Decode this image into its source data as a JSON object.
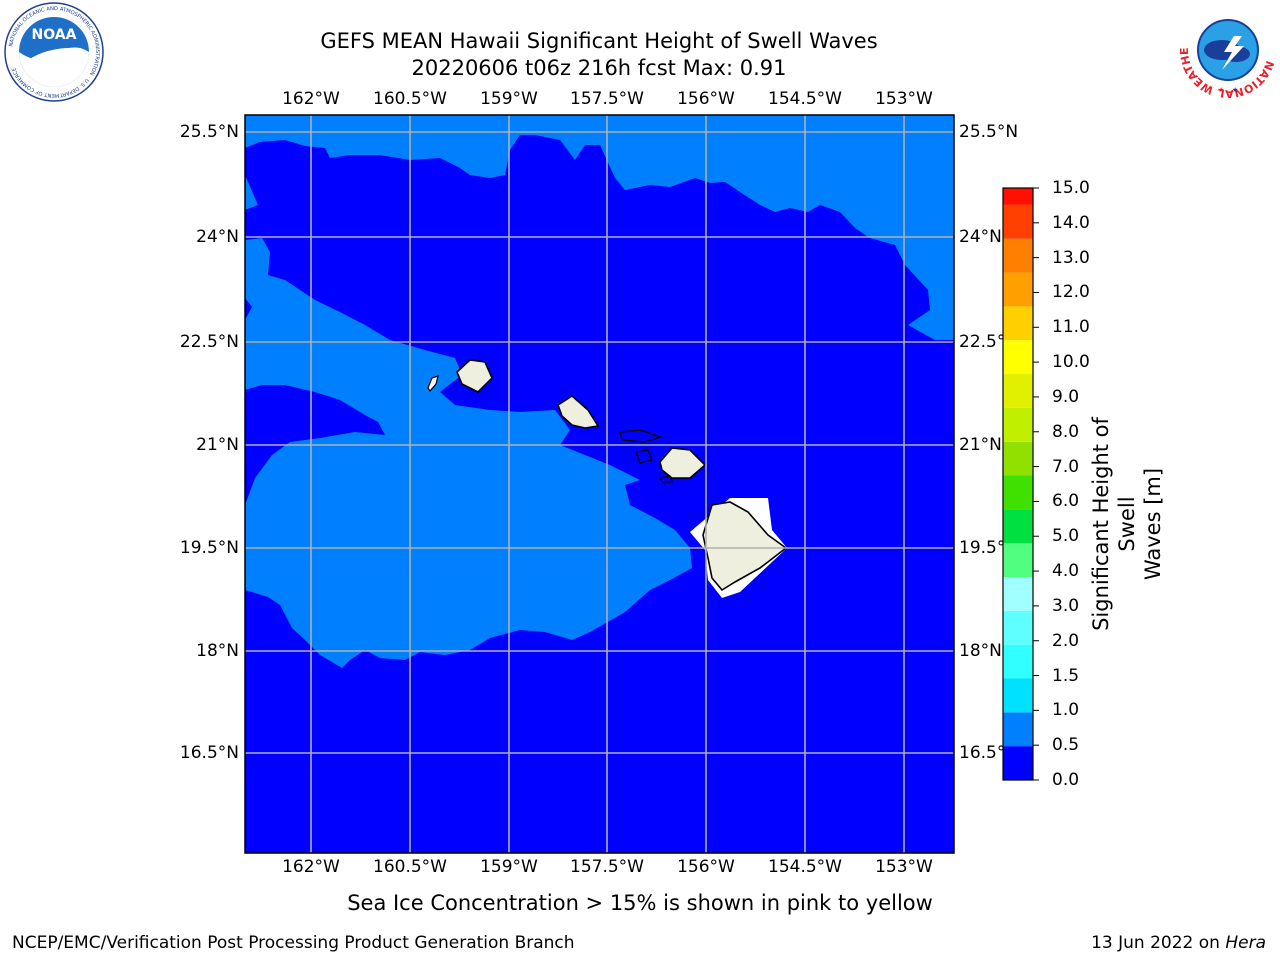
{
  "header": {
    "title_line1": "GEFS MEAN Hawaii Significant Height of Swell Waves",
    "title_line2": "20220606 t06z 216h fcst   Max: 0.91"
  },
  "map": {
    "lon_ticks": [
      "162°W",
      "160.5°W",
      "159°W",
      "157.5°W",
      "156°W",
      "154.5°W",
      "153°W"
    ],
    "lat_ticks": [
      "25.5°N",
      "24°N",
      "22.5°N",
      "21°N",
      "19.5°N",
      "18°N",
      "16.5°N"
    ],
    "colors": {
      "ocean_deep": "#0000ff",
      "ocean_shallow": "#0080ff",
      "land": "#efefdf",
      "grid": "#b0b0b0"
    }
  },
  "colorbar": {
    "label": "Significant Height of Swell Waves [m]",
    "label_line1": "Significant Height of Swell",
    "label_line2": "Waves [m]",
    "ticks": [
      "0.0",
      "0.5",
      "1.0",
      "1.5",
      "2.0",
      "3.0",
      "4.0",
      "5.0",
      "6.0",
      "7.0",
      "8.0",
      "9.0",
      "10.0",
      "11.0",
      "12.0",
      "13.0",
      "14.0",
      "15.0"
    ],
    "colors": [
      "#0000ff",
      "#0080ff",
      "#00e0ff",
      "#30ffff",
      "#60ffff",
      "#a0ffff",
      "#50ff80",
      "#00e040",
      "#40e000",
      "#90e000",
      "#c0f000",
      "#e0f000",
      "#ffff00",
      "#ffd000",
      "#ffa000",
      "#ff8000",
      "#ff4000",
      "#ff1000"
    ]
  },
  "note": "Sea Ice Concentration > 15% is shown in pink to yellow",
  "footer": {
    "left": "NCEP/EMC/Verification Post Processing Product Generation Branch",
    "right_date": "13 Jun 2022 on ",
    "right_host": "Hera"
  },
  "logos": {
    "noaa": "NOAA",
    "noaa_ring": "NATIONAL OCEANIC AND ATMOSPHERIC ADMINISTRATION · U.S. DEPARTMENT OF COMMERCE",
    "nws_ring": "NATIONAL WEATHER SERVICE"
  }
}
